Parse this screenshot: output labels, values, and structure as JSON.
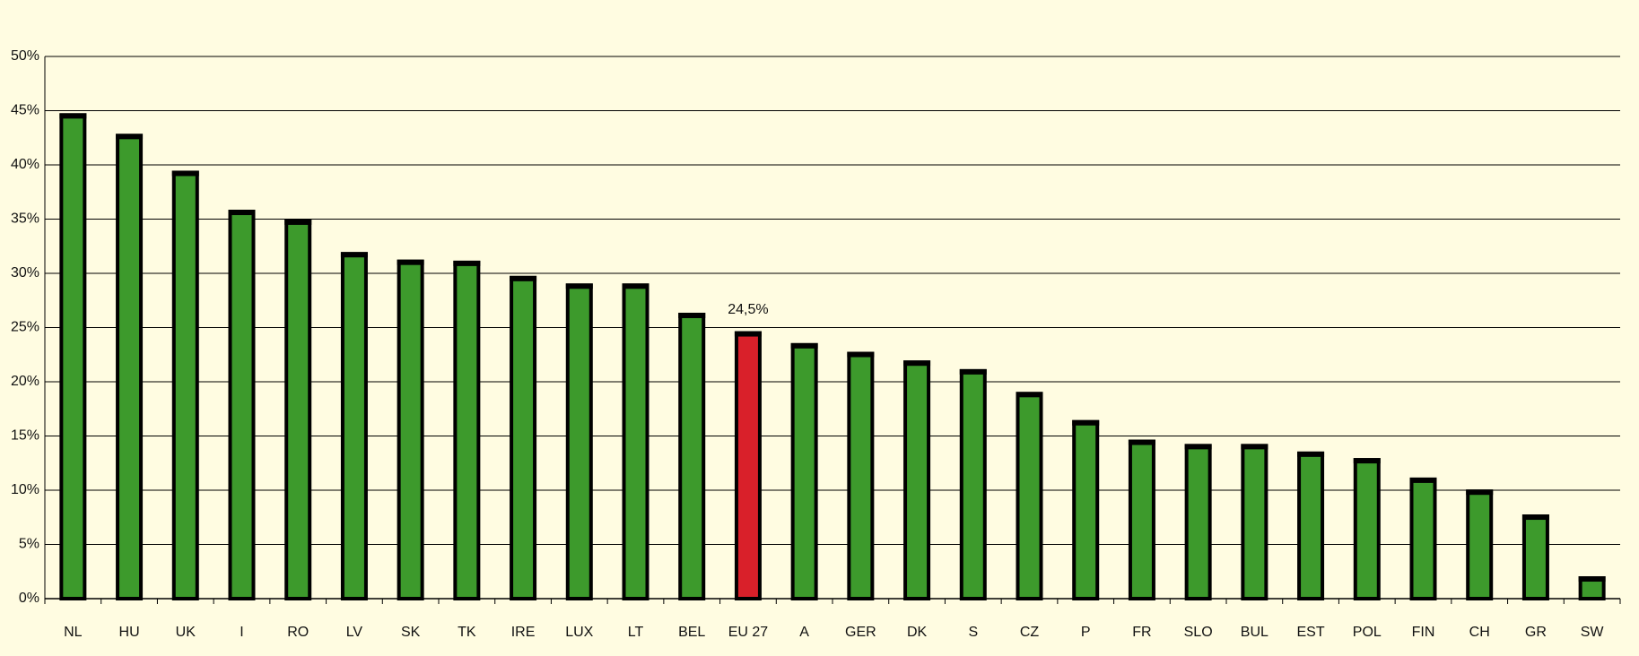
{
  "chart_data": {
    "type": "bar",
    "categories": [
      "NL",
      "HU",
      "UK",
      "I",
      "RO",
      "LV",
      "SK",
      "TK",
      "IRE",
      "LUX",
      "LT",
      "BEL",
      "EU 27",
      "A",
      "GER",
      "DK",
      "S",
      "CZ",
      "P",
      "FR",
      "SLO",
      "BUL",
      "EST",
      "POL",
      "FIN",
      "CH",
      "GR",
      "SW"
    ],
    "values": [
      44.6,
      42.7,
      39.3,
      35.7,
      34.8,
      31.8,
      31.1,
      31.0,
      29.6,
      28.9,
      28.9,
      26.2,
      24.5,
      23.4,
      22.6,
      21.8,
      21.0,
      18.9,
      16.3,
      14.5,
      14.1,
      14.1,
      13.4,
      12.8,
      11.0,
      9.9,
      7.6,
      1.9
    ],
    "value_labels": [
      null,
      null,
      null,
      null,
      null,
      null,
      null,
      null,
      null,
      null,
      null,
      null,
      "24,5%",
      null,
      null,
      null,
      null,
      null,
      null,
      null,
      null,
      null,
      null,
      null,
      null,
      null,
      null,
      null
    ],
    "colors": [
      "#3d9a2c",
      "#3d9a2c",
      "#3d9a2c",
      "#3d9a2c",
      "#3d9a2c",
      "#3d9a2c",
      "#3d9a2c",
      "#3d9a2c",
      "#3d9a2c",
      "#3d9a2c",
      "#3d9a2c",
      "#3d9a2c",
      "#d9202a",
      "#3d9a2c",
      "#3d9a2c",
      "#3d9a2c",
      "#3d9a2c",
      "#3d9a2c",
      "#3d9a2c",
      "#3d9a2c",
      "#3d9a2c",
      "#3d9a2c",
      "#3d9a2c",
      "#3d9a2c",
      "#3d9a2c",
      "#3d9a2c",
      "#3d9a2c",
      "#3d9a2c"
    ],
    "ylim": [
      0,
      50
    ],
    "yticks": [
      {
        "value": 0,
        "label": "0%"
      },
      {
        "value": 5,
        "label": "5%"
      },
      {
        "value": 10,
        "label": "10%"
      },
      {
        "value": 15,
        "label": "15%"
      },
      {
        "value": 20,
        "label": "20%"
      },
      {
        "value": 25,
        "label": "25%"
      },
      {
        "value": 30,
        "label": "30%"
      },
      {
        "value": 35,
        "label": "35%"
      },
      {
        "value": 40,
        "label": "40%"
      },
      {
        "value": 45,
        "label": "45%"
      },
      {
        "value": 50,
        "label": "50%"
      }
    ],
    "grid": true
  }
}
